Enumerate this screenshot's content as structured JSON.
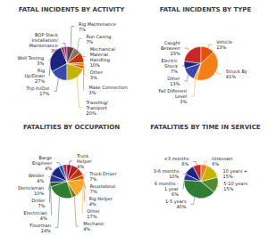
{
  "chart_data": [
    {
      "type": "pie",
      "title": "FATAL INCIDENTS BY ACTIVITY",
      "categories": [
        "BOP Stack\nInstallation/Maintenance",
        "Well Testing",
        "Rig\nUp/Down",
        "Trip In/Out",
        "Traveling/\nTransport",
        "Make Connection",
        "Other",
        "Mechanical\nMaterial\nHandling",
        "Run Casing",
        "Rig Maintenance"
      ],
      "values": [
        3,
        3,
        27,
        17,
        20,
        3,
        3,
        10,
        7,
        7
      ],
      "value_labels": [
        "3%",
        "3%",
        "27%",
        "17%",
        "20%",
        "3%",
        "3%",
        "10%",
        "7%",
        "7%"
      ],
      "colors": [
        "#7b1fa2",
        "#c62828",
        "#1a237e",
        "#3949ab",
        "#c8b400",
        "#e65100",
        "#f57c00",
        "#bf360c",
        "#8d6e63",
        "#5d4037"
      ]
    },
    {
      "type": "pie",
      "title": "FATAL INCIDENTS BY TYPE",
      "categories": [
        "Caught\nBetween",
        "Electric\nShock",
        "Other",
        "Fall Different\nLevel",
        "Struck By",
        "Vehicle"
      ],
      "values": [
        23,
        7,
        13,
        3,
        41,
        13
      ],
      "value_labels": [
        "23%",
        "7%",
        "13%",
        "3%",
        "41%",
        "13%"
      ],
      "colors": [
        "#c62828",
        "#1a237e",
        "#3949ab",
        "#f9a825",
        "#f57f17",
        "#e65100"
      ]
    },
    {
      "type": "pie",
      "title": "FATALITIES BY OCCUPATION",
      "categories": [
        "Welder",
        "Barge\nEngineer",
        "Derrickman",
        "Driller",
        "Electrician",
        "Floorman",
        "Mechanic",
        "Other",
        "Rig Helper",
        "Roustabout",
        "Truck Driver",
        "Truck\nHelper"
      ],
      "values": [
        4,
        4,
        10,
        7,
        4,
        24,
        4,
        17,
        4,
        7,
        7,
        4
      ],
      "value_labels": [
        "4%",
        "4%",
        "10%",
        "7%",
        "4%",
        "24%",
        "4%",
        "17%",
        "4%",
        "7%",
        "7%",
        "4%"
      ],
      "colors": [
        "#c62828",
        "#1565c0",
        "#1a237e",
        "#283593",
        "#1b5e20",
        "#2e7d32",
        "#827717",
        "#f9a825",
        "#e65100",
        "#bf360c",
        "#b71c1c",
        "#880e4f"
      ]
    },
    {
      "type": "pie",
      "title": "FATALITIES BY TIME IN SERVICE",
      "categories": [
        "<3 months",
        "3-6 months",
        "6 months -\n1 year",
        "1-5 years",
        "5-10 years",
        "10 years +",
        "Unknown"
      ],
      "values": [
        8,
        10,
        6,
        40,
        15,
        15,
        6
      ],
      "value_labels": [
        "8%",
        "10%",
        "6%",
        "40%",
        "15%",
        "15%",
        "6%"
      ],
      "colors": [
        "#c62828",
        "#1a237e",
        "#283593",
        "#2e7d32",
        "#558b2f",
        "#c8b400",
        "#f57f17"
      ]
    }
  ]
}
